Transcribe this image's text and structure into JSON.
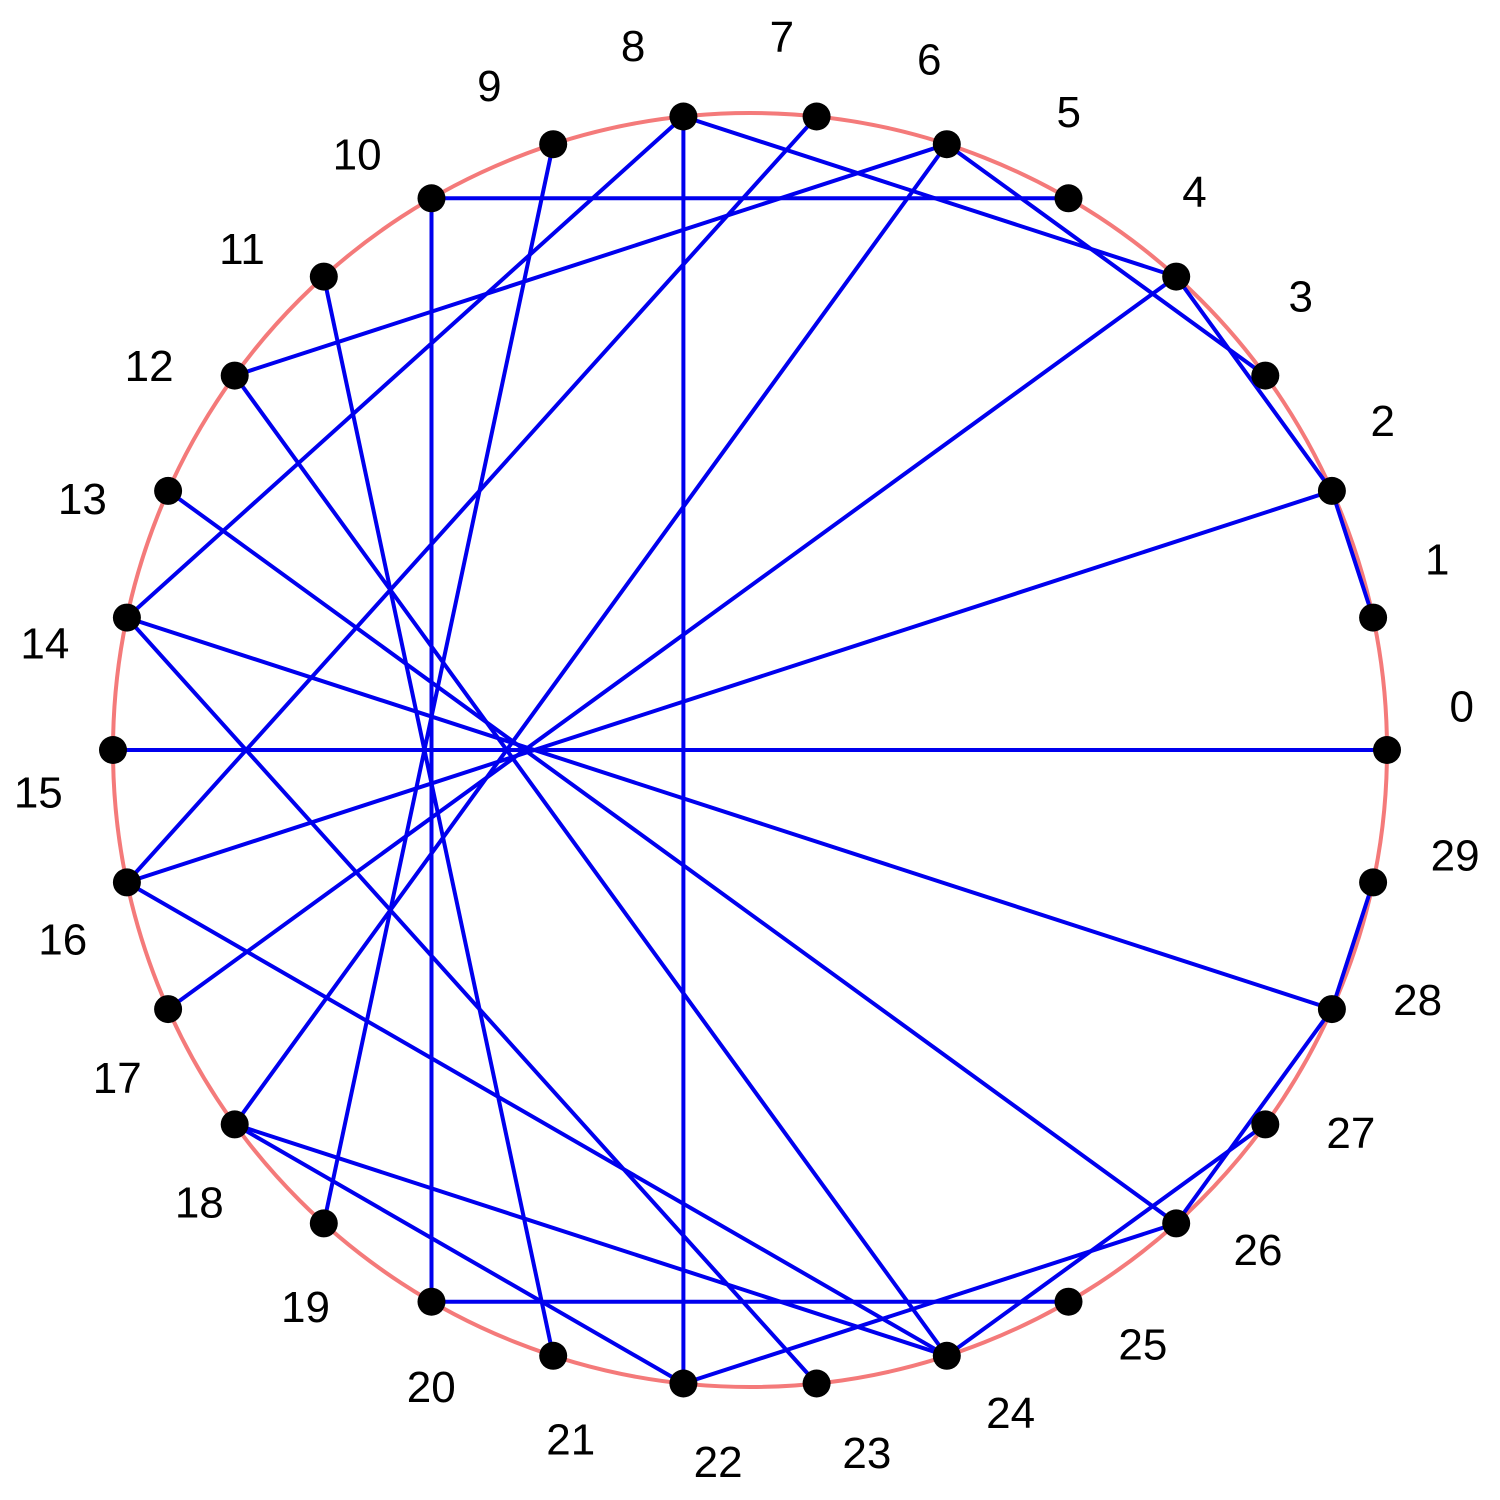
{
  "diagram": {
    "circle_color": "#f47a7a",
    "edge_color": "#0000ee",
    "node_color": "#000000",
    "nodes": [
      "0",
      "1",
      "2",
      "3",
      "4",
      "5",
      "6",
      "7",
      "8",
      "9",
      "10",
      "11",
      "12",
      "13",
      "14",
      "15",
      "16",
      "17",
      "18",
      "19",
      "20",
      "21",
      "22",
      "23",
      "24",
      "25",
      "26",
      "27",
      "28",
      "29"
    ],
    "edges": [
      [
        0,
        15
      ],
      [
        1,
        2
      ],
      [
        2,
        16
      ],
      [
        2,
        4
      ],
      [
        3,
        6
      ],
      [
        4,
        17
      ],
      [
        4,
        8
      ],
      [
        5,
        10
      ],
      [
        6,
        18
      ],
      [
        6,
        12
      ],
      [
        7,
        16
      ],
      [
        8,
        22
      ],
      [
        8,
        14
      ],
      [
        9,
        19
      ],
      [
        10,
        20
      ],
      [
        11,
        21
      ],
      [
        12,
        24
      ],
      [
        13,
        26
      ],
      [
        14,
        28
      ],
      [
        14,
        23
      ],
      [
        16,
        24
      ],
      [
        18,
        22
      ],
      [
        18,
        24
      ],
      [
        20,
        25
      ],
      [
        22,
        26
      ],
      [
        24,
        27
      ],
      [
        26,
        28
      ],
      [
        28,
        29
      ]
    ]
  }
}
